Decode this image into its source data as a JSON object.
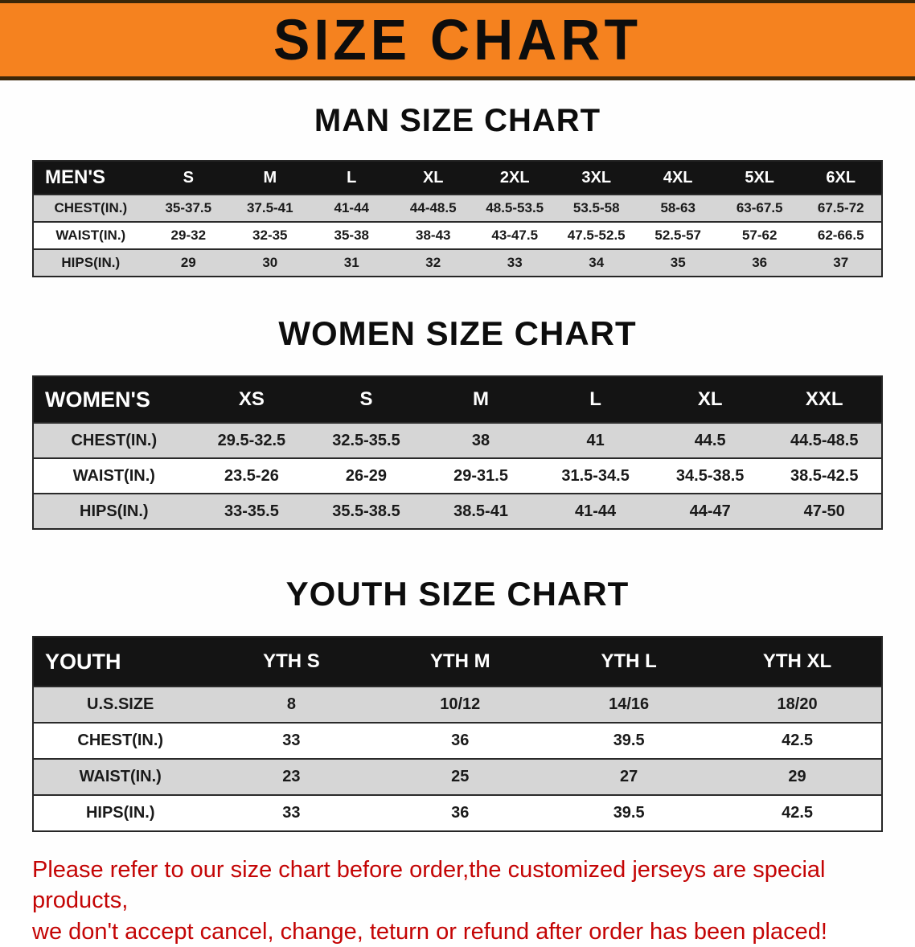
{
  "banner": {
    "title": "SIZE CHART",
    "bg_color": "#f5821f",
    "text_color": "#0d0d0d"
  },
  "sections": [
    {
      "heading": "MAN SIZE CHART",
      "table": {
        "header": [
          "MEN'S",
          "S",
          "M",
          "L",
          "XL",
          "2XL",
          "3XL",
          "4XL",
          "5XL",
          "6XL"
        ],
        "rows": [
          [
            "CHEST(IN.)",
            "35-37.5",
            "37.5-41",
            "41-44",
            "44-48.5",
            "48.5-53.5",
            "53.5-58",
            "58-63",
            "63-67.5",
            "67.5-72"
          ],
          [
            "WAIST(IN.)",
            "29-32",
            "32-35",
            "35-38",
            "38-43",
            "43-47.5",
            "47.5-52.5",
            "52.5-57",
            "57-62",
            "62-66.5"
          ],
          [
            "HIPS(IN.)",
            "29",
            "30",
            "31",
            "32",
            "33",
            "34",
            "35",
            "36",
            "37"
          ]
        ]
      }
    },
    {
      "heading": "WOMEN SIZE CHART",
      "table": {
        "header": [
          "WOMEN'S",
          "XS",
          "S",
          "M",
          "L",
          "XL",
          "XXL"
        ],
        "rows": [
          [
            "CHEST(IN.)",
            "29.5-32.5",
            "32.5-35.5",
            "38",
            "41",
            "44.5",
            "44.5-48.5"
          ],
          [
            "WAIST(IN.)",
            "23.5-26",
            "26-29",
            "29-31.5",
            "31.5-34.5",
            "34.5-38.5",
            "38.5-42.5"
          ],
          [
            "HIPS(IN.)",
            "33-35.5",
            "35.5-38.5",
            "38.5-41",
            "41-44",
            "44-47",
            "47-50"
          ]
        ]
      }
    },
    {
      "heading": "YOUTH SIZE CHART",
      "table": {
        "header": [
          "YOUTH",
          "YTH S",
          "YTH M",
          "YTH L",
          "YTH XL"
        ],
        "rows": [
          [
            "U.S.SIZE",
            "8",
            "10/12",
            "14/16",
            "18/20"
          ],
          [
            "CHEST(IN.)",
            "33",
            "36",
            "39.5",
            "42.5"
          ],
          [
            "WAIST(IN.)",
            "23",
            "25",
            "27",
            "29"
          ],
          [
            "HIPS(IN.)",
            "33",
            "36",
            "39.5",
            "42.5"
          ]
        ]
      }
    }
  ],
  "footer": {
    "line1": "Please refer to our size chart before order,the customized jerseys are special products,",
    "line2": "we don't accept cancel, change, teturn or refund after order has been placed!",
    "text_color": "#c40505"
  }
}
